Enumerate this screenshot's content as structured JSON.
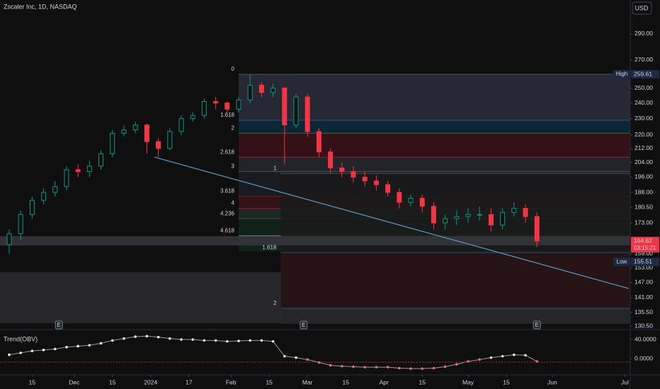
{
  "chart_data": [
    {
      "type": "candlestick",
      "title": "Zscaler Inc, 1D, NASDAQ",
      "currency": "USD",
      "log": true,
      "grid": false,
      "up_color": "#089981",
      "down_color": "#f23645",
      "x": [
        2,
        5,
        8,
        11,
        14,
        17,
        20,
        23,
        26,
        29,
        32,
        35,
        38,
        41,
        44,
        47,
        50,
        53,
        56,
        59,
        62,
        65,
        68,
        71,
        74,
        77,
        80,
        83,
        86,
        89,
        92,
        95,
        98,
        101,
        104,
        107,
        110,
        113,
        116,
        119,
        122,
        125,
        128,
        131,
        134,
        137,
        140
      ],
      "open": [
        163,
        168,
        177,
        184,
        188,
        191,
        200,
        199,
        202,
        209,
        221,
        223,
        226,
        216,
        212,
        222,
        230,
        232,
        241,
        240,
        236,
        242,
        252,
        247,
        250,
        226,
        244,
        222,
        210,
        201,
        199,
        196,
        194,
        192,
        188,
        183,
        185,
        181,
        173,
        175,
        176,
        177,
        177,
        172,
        178,
        180,
        176
      ],
      "high": [
        170,
        179,
        186,
        190,
        194,
        202,
        203,
        205,
        211,
        223,
        226,
        228,
        227,
        218,
        224,
        232,
        234,
        243,
        244,
        241,
        244,
        259.61,
        254,
        253,
        251,
        246,
        246,
        224,
        212,
        204,
        202,
        199,
        197,
        194,
        190,
        187,
        187,
        183,
        177,
        179,
        180,
        181,
        180,
        180,
        183,
        182,
        178
      ],
      "low": [
        159,
        165,
        175,
        182,
        186,
        189,
        196,
        196,
        200,
        207,
        219,
        221,
        209,
        207,
        211,
        220,
        228,
        230,
        236,
        234,
        234,
        240,
        244,
        244,
        203,
        224,
        219,
        207,
        198,
        196,
        193,
        191,
        189,
        186,
        180,
        181,
        178,
        170,
        170,
        172,
        173,
        174,
        169,
        170,
        176,
        173,
        162
      ],
      "close": [
        168,
        177,
        184,
        188,
        191,
        200,
        199,
        202,
        209,
        221,
        223,
        226,
        216,
        212,
        222,
        230,
        232,
        241,
        240,
        236,
        242,
        252,
        247,
        250,
        226,
        244,
        222,
        210,
        201,
        199,
        196,
        194,
        192,
        188,
        183,
        185,
        181,
        173,
        175,
        176,
        177,
        177,
        172,
        178,
        180,
        176,
        164.62
      ],
      "xlim": [
        -0.4,
        164.4
      ],
      "xticks": [
        {
          "value": 8,
          "label": "15"
        },
        {
          "value": 19,
          "label": "Dec"
        },
        {
          "value": 29,
          "label": "15"
        },
        {
          "value": 39,
          "label": "2024"
        },
        {
          "value": 49,
          "label": "17"
        },
        {
          "value": 60,
          "label": "Feb"
        },
        {
          "value": 70,
          "label": "15"
        },
        {
          "value": 80,
          "label": "Mar"
        },
        {
          "value": 90,
          "label": "15"
        },
        {
          "value": 100,
          "label": "Apr"
        },
        {
          "value": 110,
          "label": "15"
        },
        {
          "value": 122,
          "label": "May"
        },
        {
          "value": 132,
          "label": "15"
        },
        {
          "value": 144,
          "label": "Jun"
        },
        {
          "value": 163,
          "label": "Jul"
        }
      ],
      "ylim": [
        129.5,
        318
      ],
      "yticks": [
        {
          "value": 290,
          "label": "290.00"
        },
        {
          "value": 270,
          "label": "270.00"
        },
        {
          "value": 250,
          "label": "250.00"
        },
        {
          "value": 240,
          "label": "240.00"
        },
        {
          "value": 230,
          "label": "230.00"
        },
        {
          "value": 220,
          "label": "220.00"
        },
        {
          "value": 212,
          "label": "212.00"
        },
        {
          "value": 204,
          "label": "204.00"
        },
        {
          "value": 196,
          "label": "196.00"
        },
        {
          "value": 188,
          "label": "188.00"
        },
        {
          "value": 180.5,
          "label": "180.50"
        },
        {
          "value": 173,
          "label": "173.00"
        },
        {
          "value": 159,
          "label": "159.00"
        },
        {
          "value": 153,
          "label": "153.00"
        },
        {
          "value": 147,
          "label": "147.00"
        },
        {
          "value": 141,
          "label": "141.00"
        },
        {
          "value": 135.5,
          "label": "135.50"
        },
        {
          "value": 130.5,
          "label": "130.50"
        }
      ],
      "trendline": {
        "x": [
          40,
          164
        ],
        "y": [
          207,
          144.6
        ],
        "color": "#5b9cc0"
      },
      "fib_a": {
        "x_start": 62,
        "levels": [
          {
            "level": 0,
            "price": 259.61,
            "color": "#787b86",
            "fill": "#2a2e39"
          },
          {
            "level": 1.618,
            "price": 229,
            "color": "#3d7fc8",
            "fill": "#0d2a3d"
          },
          {
            "level": 2,
            "price": 221,
            "color": "#4caf50",
            "fill": "#3a1218"
          },
          {
            "level": 2.618,
            "price": 207,
            "color": "#c2334a",
            "fill": "#26282f"
          },
          {
            "level": 3,
            "price": 199,
            "color": "#787b86",
            "fill": "#1c1c24"
          },
          {
            "level": 3.618,
            "price": 186,
            "color": "#8c3340",
            "fill": "#3a1218"
          },
          {
            "level": 4,
            "price": 180,
            "color": "#c2334a",
            "fill": "#1e2c24"
          },
          {
            "level": 4.236,
            "price": 175,
            "color": "#6a6d78",
            "fill": "#10261c"
          },
          {
            "level": 4.618,
            "price": 167,
            "color": "#d1d4dc",
            "fill": "#10261c"
          }
        ]
      },
      "fib_b": {
        "x_start": 73,
        "levels": [
          {
            "level": 1,
            "price": 198,
            "color": "#787b86",
            "fill": "#1a1a1a"
          },
          {
            "level": 1.618,
            "price": 159.5,
            "color": "#3d7fc8",
            "fill": "#2a1416"
          },
          {
            "level": 2,
            "price": 137,
            "color": "#3d7fc8",
            "fill": "#2a2a2e"
          }
        ]
      },
      "price_labels": [
        {
          "label": "High",
          "value": 259.61
        },
        {
          "value": 164.62,
          "countdown": "03:15:21"
        },
        {
          "label": "Low",
          "value": 155.51
        }
      ],
      "events": [
        {
          "label": "E",
          "x": 15
        },
        {
          "label": "E",
          "x": 79
        },
        {
          "label": "E",
          "x": 140
        }
      ]
    },
    {
      "type": "line",
      "title": "Trend(OBV)",
      "x": [
        2,
        5,
        8,
        11,
        14,
        17,
        20,
        23,
        26,
        29,
        32,
        35,
        38,
        41,
        44,
        47,
        50,
        53,
        56,
        59,
        62,
        65,
        68,
        71,
        74,
        77,
        80,
        83,
        86,
        89,
        92,
        95,
        98,
        101,
        104,
        107,
        110,
        113,
        116,
        119,
        122,
        125,
        128,
        131,
        134,
        137,
        140
      ],
      "values": [
        8,
        12,
        16,
        18,
        20,
        24,
        26,
        28,
        32,
        38,
        42,
        46,
        47,
        45,
        42,
        40,
        40,
        38,
        38,
        36,
        37,
        38,
        38,
        36,
        5,
        2,
        -2,
        -8,
        -14,
        -16,
        -17,
        -18,
        -18,
        -18,
        -20,
        -21,
        -21,
        -20,
        -17,
        -12,
        -6,
        -2,
        2,
        5,
        8,
        7,
        -6
      ],
      "pos_color": "#e8e8e8",
      "neg_color": "#f06292",
      "ylim": [
        -31.1,
        57.8
      ],
      "yticks": [
        {
          "value": 40,
          "label": "40.0000"
        },
        {
          "value": 0,
          "label": "0.0000"
        }
      ]
    }
  ]
}
